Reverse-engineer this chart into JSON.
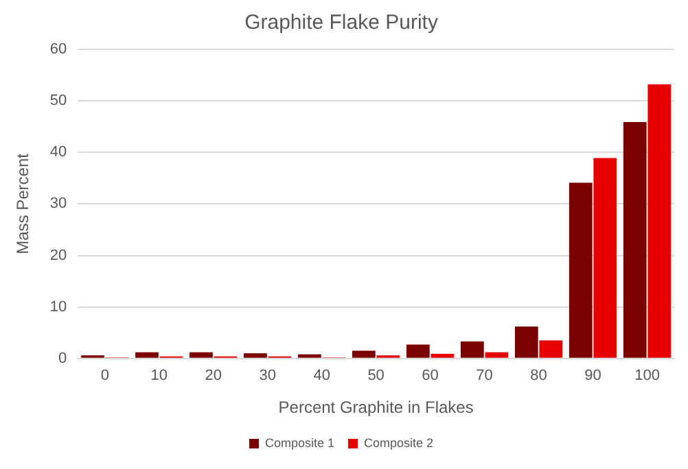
{
  "chart_data": {
    "type": "bar",
    "title": "Graphite Flake Purity",
    "xlabel": "Percent Graphite in Flakes",
    "ylabel": "Mass Percent",
    "categories": [
      "0",
      "10",
      "20",
      "30",
      "40",
      "50",
      "60",
      "70",
      "80",
      "90",
      "100"
    ],
    "series": [
      {
        "name": "Composite 1",
        "color": "#7b0000",
        "values": [
          0.6,
          1.2,
          1.2,
          1.0,
          0.8,
          1.5,
          2.7,
          3.3,
          6.2,
          34.1,
          45.9
        ]
      },
      {
        "name": "Composite 2",
        "color": "#e60000",
        "values": [
          0.2,
          0.4,
          0.4,
          0.4,
          0.2,
          0.6,
          0.9,
          1.2,
          3.5,
          38.9,
          53.2
        ]
      }
    ],
    "ylim": [
      0,
      60
    ],
    "yticks": [
      0,
      10,
      20,
      30,
      40,
      50,
      60
    ],
    "grid": "y",
    "legend": "bottom"
  }
}
